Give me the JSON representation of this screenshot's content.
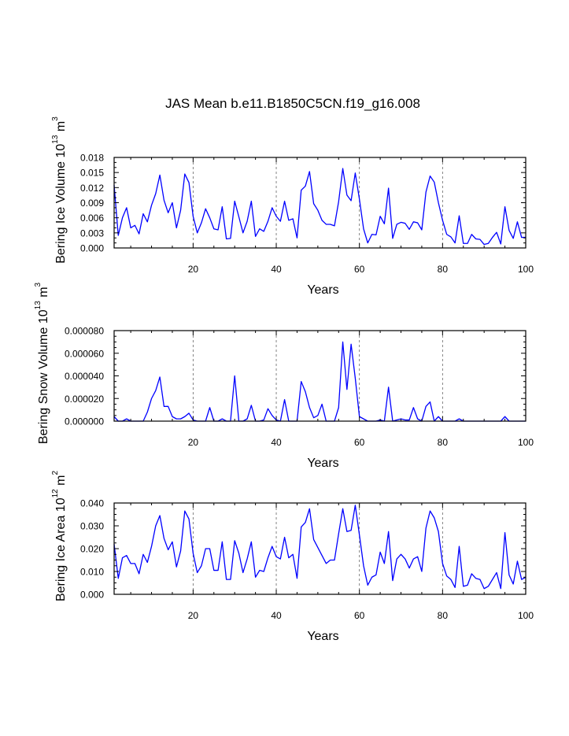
{
  "title": "JAS Mean b.e11.B1850C5CN.f19_g16.008",
  "colors": {
    "series": "#0000ff",
    "axis": "#000000",
    "grid": "#666666"
  },
  "chart_data": [
    {
      "type": "line",
      "name": "ice-volume",
      "ylabel": {
        "main": "Bering Ice Volume 10",
        "exp": "13",
        "unit": " m",
        "unit_exp": "3"
      },
      "xlabel": "Years",
      "xlim": [
        1,
        100
      ],
      "ylim": [
        0,
        0.018
      ],
      "xticks": [
        20,
        40,
        60,
        80,
        100
      ],
      "yticks": [
        "0.000",
        "0.003",
        "0.006",
        "0.009",
        "0.012",
        "0.015",
        "0.018"
      ],
      "ytick_values": [
        0,
        0.003,
        0.006,
        0.009,
        0.012,
        0.015,
        0.018
      ],
      "vlines": [
        20,
        40,
        60,
        80
      ],
      "x_start": 1,
      "values": [
        0.0125,
        0.0025,
        0.006,
        0.008,
        0.004,
        0.0045,
        0.0028,
        0.0068,
        0.0052,
        0.0085,
        0.0108,
        0.0145,
        0.0095,
        0.007,
        0.009,
        0.004,
        0.0075,
        0.0147,
        0.013,
        0.0063,
        0.003,
        0.005,
        0.0078,
        0.006,
        0.0038,
        0.0036,
        0.0082,
        0.0018,
        0.0019,
        0.0093,
        0.0062,
        0.003,
        0.0053,
        0.0093,
        0.0023,
        0.0038,
        0.0033,
        0.0053,
        0.008,
        0.0063,
        0.0053,
        0.0093,
        0.0055,
        0.0058,
        0.002,
        0.0115,
        0.0123,
        0.0152,
        0.0088,
        0.0075,
        0.0055,
        0.0047,
        0.0047,
        0.0044,
        0.0092,
        0.0158,
        0.0105,
        0.0094,
        0.0149,
        0.0097,
        0.0038,
        0.001,
        0.0027,
        0.0026,
        0.0063,
        0.0048,
        0.0119,
        0.0019,
        0.0047,
        0.0051,
        0.0049,
        0.0037,
        0.0052,
        0.005,
        0.0036,
        0.0111,
        0.0143,
        0.0131,
        0.009,
        0.0055,
        0.0027,
        0.0022,
        0.001,
        0.0064,
        0.0009,
        0.0009,
        0.0027,
        0.0018,
        0.0017,
        0.0007,
        0.0009,
        0.0021,
        0.0031,
        0.0008,
        0.0082,
        0.0035,
        0.0019,
        0.0052,
        0.0021,
        0.0021
      ]
    },
    {
      "type": "line",
      "name": "snow-volume",
      "ylabel": {
        "main": "Bering Snow Volume 10",
        "exp": "13",
        "unit": " m",
        "unit_exp": "3"
      },
      "xlabel": "Years",
      "xlim": [
        1,
        100
      ],
      "ylim": [
        0,
        8e-05
      ],
      "xticks": [
        20,
        40,
        60,
        80,
        100
      ],
      "yticks": [
        "0.000000",
        "0.000020",
        "0.000040",
        "0.000060",
        "0.000080"
      ],
      "ytick_values": [
        0,
        2e-05,
        4e-05,
        6e-05,
        8e-05
      ],
      "vlines": [
        20,
        40,
        60,
        80
      ],
      "x_start": 1,
      "values": [
        4e-06,
        0.0,
        0.0,
        2e-06,
        0.0,
        0.0,
        0.0,
        0.0,
        8e-06,
        2e-05,
        2.7e-05,
        3.9e-05,
        1.3e-05,
        1.3e-05,
        4e-06,
        2e-06,
        2e-06,
        4e-06,
        7e-06,
        1e-06,
        0.0,
        0.0,
        0.0,
        1.2e-05,
        0.0,
        0.0,
        2e-06,
        0.0,
        0.0,
        4e-05,
        0.0,
        0.0,
        2e-06,
        1.4e-05,
        0.0,
        0.0,
        1e-06,
        1.1e-05,
        5e-06,
        1e-06,
        0.0,
        1.9e-05,
        0.0,
        0.0,
        0.0,
        3.5e-05,
        2.6e-05,
        1.2e-05,
        3e-06,
        5e-06,
        1.5e-05,
        0.0,
        0.0,
        0.0,
        1.2e-05,
        7e-05,
        2.8e-05,
        6.8e-05,
        3.8e-05,
        4e-06,
        2e-06,
        0.0,
        0.0,
        0.0,
        1e-06,
        0.0,
        3e-05,
        0.0,
        1e-06,
        2e-06,
        1e-06,
        1e-06,
        1.2e-05,
        2e-06,
        0.0,
        1.3e-05,
        1.7e-05,
        0.0,
        4e-06,
        0.0,
        0.0,
        0.0,
        0.0,
        2e-06,
        0.0,
        0.0,
        0.0,
        0.0,
        0.0,
        0.0,
        0.0,
        0.0,
        0.0,
        0.0,
        4e-06,
        0.0,
        0.0,
        0.0,
        0.0,
        0.0
      ]
    },
    {
      "type": "line",
      "name": "ice-area",
      "ylabel": {
        "main": "Bering Ice Area 10",
        "exp": "12",
        "unit": " m",
        "unit_exp": "2"
      },
      "xlabel": "Years",
      "xlim": [
        1,
        100
      ],
      "ylim": [
        0,
        0.04
      ],
      "xticks": [
        20,
        40,
        60,
        80,
        100
      ],
      "yticks": [
        "0.000",
        "0.010",
        "0.020",
        "0.030",
        "0.040"
      ],
      "ytick_values": [
        0,
        0.01,
        0.02,
        0.03,
        0.04
      ],
      "vlines": [
        20,
        40,
        60,
        80
      ],
      "x_start": 1,
      "values": [
        0.022,
        0.007,
        0.016,
        0.017,
        0.0135,
        0.0135,
        0.009,
        0.0175,
        0.014,
        0.021,
        0.03,
        0.0345,
        0.0245,
        0.0195,
        0.023,
        0.012,
        0.019,
        0.0365,
        0.033,
        0.018,
        0.0095,
        0.0125,
        0.02,
        0.02,
        0.0105,
        0.0105,
        0.023,
        0.0065,
        0.0065,
        0.0235,
        0.018,
        0.0095,
        0.0155,
        0.023,
        0.0075,
        0.0105,
        0.01,
        0.016,
        0.021,
        0.0165,
        0.0155,
        0.025,
        0.016,
        0.0175,
        0.007,
        0.0295,
        0.0315,
        0.0375,
        0.024,
        0.0205,
        0.017,
        0.0135,
        0.015,
        0.015,
        0.0265,
        0.0375,
        0.0275,
        0.028,
        0.039,
        0.026,
        0.0125,
        0.004,
        0.0075,
        0.0085,
        0.0185,
        0.0135,
        0.0275,
        0.006,
        0.0155,
        0.0175,
        0.0155,
        0.0115,
        0.0155,
        0.0165,
        0.01,
        0.029,
        0.0365,
        0.0335,
        0.0275,
        0.0135,
        0.008,
        0.0065,
        0.003,
        0.021,
        0.0035,
        0.004,
        0.009,
        0.007,
        0.0065,
        0.0025,
        0.0035,
        0.0065,
        0.0095,
        0.0025,
        0.027,
        0.0085,
        0.0045,
        0.0145,
        0.0065,
        0.0075
      ]
    }
  ]
}
